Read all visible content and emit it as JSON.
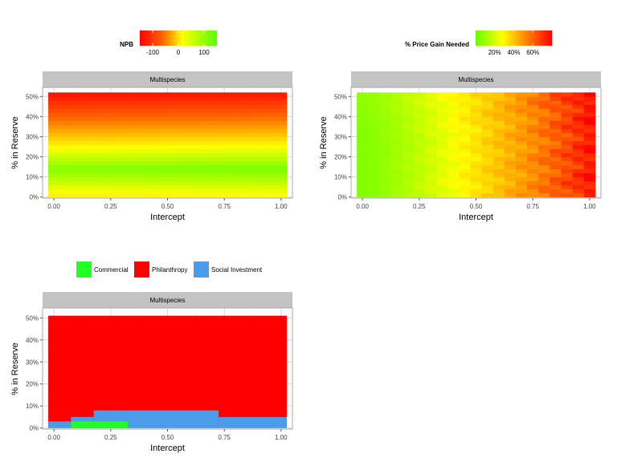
{
  "chart_data": [
    {
      "type": "heatmap",
      "panel_title": "Multispecies",
      "xlabel": "Intercept",
      "ylabel": "% in Reserve",
      "x_ticks": [
        "0.00",
        "0.25",
        "0.50",
        "0.75",
        "1.00"
      ],
      "y_ticks": [
        "0%",
        "10%",
        "20%",
        "30%",
        "40%",
        "50%"
      ],
      "xlim": [
        -0.05,
        1.05
      ],
      "ylim": [
        -0.5,
        54.5
      ],
      "x": [
        0.0,
        0.05,
        0.1,
        0.15,
        0.2,
        0.25,
        0.3,
        0.35,
        0.4,
        0.45,
        0.5,
        0.55,
        0.6,
        0.65,
        0.7,
        0.75,
        0.8,
        0.85,
        0.9,
        0.95,
        1.0
      ],
      "y": [
        1,
        3,
        5,
        7,
        9,
        11,
        13,
        15,
        17,
        19,
        21,
        23,
        25,
        27,
        29,
        31,
        33,
        35,
        37,
        39,
        41,
        43,
        45,
        47,
        49,
        51
      ],
      "legend": {
        "title": "NPB",
        "ticks": [
          "-100",
          "0",
          "100"
        ],
        "range": [
          -150,
          150
        ],
        "position": "top"
      },
      "colors": [
        "#ff0000",
        "#ff6600",
        "#ffff00",
        "#55ff00"
      ],
      "z_model": "NPB as a function of % in reserve; rising from about 45 at 1% to about 125 at 13-15%, then falling to about -130 at 51%"
    },
    {
      "type": "heatmap",
      "panel_title": "Multispecies",
      "xlabel": "Intercept",
      "ylabel": "% in Reserve",
      "x_ticks": [
        "0.00",
        "0.25",
        "0.50",
        "0.75",
        "1.00"
      ],
      "y_ticks": [
        "0%",
        "10%",
        "20%",
        "30%",
        "40%",
        "50%"
      ],
      "xlim": [
        -0.05,
        1.05
      ],
      "ylim": [
        -0.5,
        54.5
      ],
      "x": [
        0.0,
        0.05,
        0.1,
        0.15,
        0.2,
        0.25,
        0.3,
        0.35,
        0.4,
        0.45,
        0.5,
        0.55,
        0.6,
        0.65,
        0.7,
        0.75,
        0.8,
        0.85,
        0.9,
        0.95,
        1.0
      ],
      "y": [
        1,
        3,
        5,
        7,
        9,
        11,
        13,
        15,
        17,
        19,
        21,
        23,
        25,
        27,
        29,
        31,
        33,
        35,
        37,
        39,
        41,
        43,
        45,
        47,
        49,
        51
      ],
      "legend": {
        "title": "% Price Gain Needed",
        "ticks": [
          "20%",
          "40%",
          "60%"
        ],
        "range": [
          0,
          80
        ],
        "position": "top"
      },
      "colors": [
        "#66ff00",
        "#ffff00",
        "#ff8800",
        "#ff0000"
      ],
      "z_model": "price gain needed grows with intercept: about 5% at 0.00, about 25% at 0.45, about 75% at 1.00, with mild variation across % in reserve"
    },
    {
      "type": "area",
      "panel_title": "Multispecies",
      "xlabel": "Intercept",
      "ylabel": "% in Reserve",
      "x_ticks": [
        "0.00",
        "0.25",
        "0.50",
        "0.75",
        "1.00"
      ],
      "y_ticks": [
        "0%",
        "10%",
        "20%",
        "30%",
        "40%",
        "50%"
      ],
      "xlim": [
        -0.05,
        1.05
      ],
      "ylim": [
        -0.5,
        54.5
      ],
      "legend": {
        "position": "top",
        "entries": [
          "Commercial",
          "Philanthropy",
          "Social Investment"
        ],
        "colors": [
          "#22ff22",
          "#ff0000",
          "#4a9be8"
        ]
      },
      "regions": [
        {
          "category": "Philanthropy",
          "x": [
            -0.025,
            1.025
          ],
          "y": [
            0,
            51
          ]
        },
        {
          "category": "Social Investment",
          "x": [
            -0.025,
            0.075
          ],
          "y": [
            0,
            3
          ]
        },
        {
          "category": "Social Investment",
          "x": [
            0.075,
            0.175
          ],
          "y": [
            0,
            5
          ]
        },
        {
          "category": "Social Investment",
          "x": [
            0.175,
            0.725
          ],
          "y": [
            0,
            8
          ]
        },
        {
          "category": "Social Investment",
          "x": [
            0.725,
            1.025
          ],
          "y": [
            0,
            5
          ]
        },
        {
          "category": "Commercial",
          "x": [
            0.075,
            0.325
          ],
          "y": [
            0,
            3
          ]
        }
      ]
    }
  ]
}
